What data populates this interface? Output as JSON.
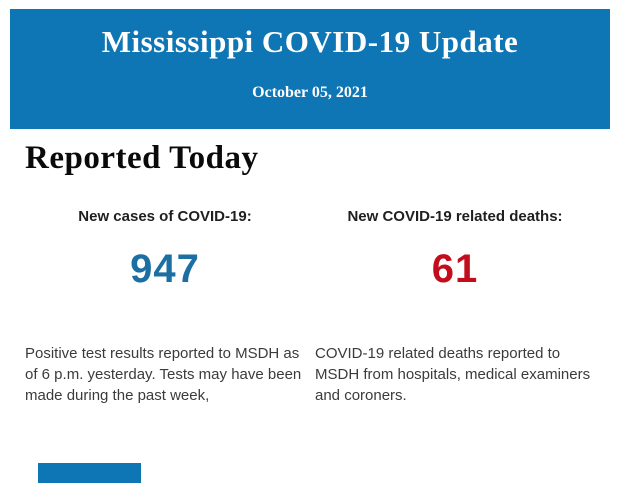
{
  "header": {
    "title": "Mississippi COVID-19 Update",
    "date": "October 05, 2021",
    "bg_color": "#0e76b4",
    "text_color": "#ffffff"
  },
  "section": {
    "heading": "Reported Today"
  },
  "stats": [
    {
      "label": "New cases of COVID-19:",
      "value": "947",
      "value_color": "#1c6fa3",
      "description": "Positive test results reported to MSDH as of 6 p.m. yesterday. Tests may have been made during the past week,"
    },
    {
      "label": "New COVID-19 related deaths:",
      "value": "61",
      "value_color": "#c20d1c",
      "description": "COVID-19 related deaths reported to MSDH from hospitals, medical examiners and coroners."
    }
  ],
  "footer": {
    "partial_block_color": "#0e76b4"
  }
}
